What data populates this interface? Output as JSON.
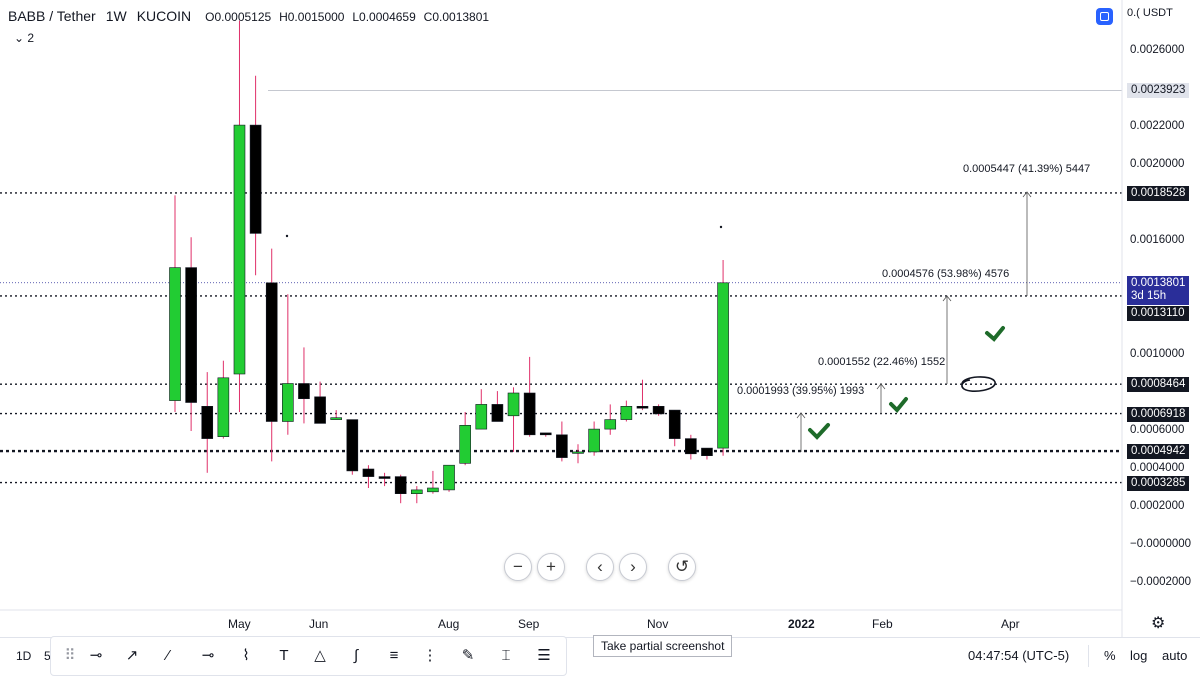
{
  "header": {
    "symbol": "BABB / Tether",
    "interval": "1W",
    "exchange": "KUCOIN",
    "open": "O0.0005125",
    "high": "H0.0015000",
    "low": "L0.0004659",
    "close": "C0.0013801",
    "indicator_count": "2"
  },
  "currency_label": "0.( USDT",
  "price_labels": {
    "hline_top": "0.0023923",
    "level_1": "0.0018528",
    "current_price": "0.0013801",
    "countdown": "3d 15h",
    "level_2": "0.0013110",
    "level_3": "0.0008464",
    "level_4": "0.0006918",
    "level_5": "0.0004942",
    "level_6": "0.0003285"
  },
  "annotations": [
    {
      "text": "0.0005447 (41.39%) 5447"
    },
    {
      "text": "0.0004576 (53.98%) 4576"
    },
    {
      "text": "0.0001552 (22.46%) 1552"
    },
    {
      "text": "0.0001993 (39.95%) 1993"
    }
  ],
  "nav_buttons": {
    "zoom_out": "−",
    "zoom_in": "+",
    "scroll_left": "‹",
    "scroll_right": "›",
    "reset": "↺"
  },
  "bottom": {
    "tf_1d": "1D",
    "tf_5": "5",
    "tooltip": "Take partial screenshot",
    "clock": "04:47:54 (UTC-5)",
    "percent": "%",
    "log": "log",
    "auto": "auto"
  },
  "colors": {
    "up": "#22cc33",
    "down": "#000000",
    "wick": "#e0306a",
    "background": "#ffffff",
    "checkmark": "#1e6b2a"
  },
  "chart_data": {
    "type": "candlestick",
    "title": "BABB / Tether 1W KUCOIN",
    "y_ticks": [
      "0.0026000",
      "0.0022000",
      "0.0020000",
      "0.0016000",
      "0.0010000",
      "0.0006000",
      "0.0004000",
      "0.0002000",
      "−0.0000000",
      "−0.0002000"
    ],
    "y_tick_values": [
      0.0026,
      0.0022,
      0.002,
      0.0016,
      0.001,
      0.0006,
      0.0004,
      0.0002,
      0.0,
      -0.0002
    ],
    "x_ticks": [
      "May",
      "Jun",
      "Aug",
      "Sep",
      "Nov",
      "2022",
      "Feb",
      "Apr"
    ],
    "ylim": [
      -0.00024,
      0.00278
    ],
    "candles": [
      {
        "o": 0.00076,
        "h": 0.00184,
        "l": 0.0007,
        "c": 0.00146
      },
      {
        "o": 0.00146,
        "h": 0.00162,
        "l": 0.0006,
        "c": 0.00075
      },
      {
        "o": 0.00073,
        "h": 0.00091,
        "l": 0.00038,
        "c": 0.00056
      },
      {
        "o": 0.00057,
        "h": 0.00097,
        "l": 0.00056,
        "c": 0.00088
      },
      {
        "o": 0.0009,
        "h": 0.00276,
        "l": 0.0007,
        "c": 0.00221
      },
      {
        "o": 0.00221,
        "h": 0.00247,
        "l": 0.00142,
        "c": 0.00164
      },
      {
        "o": 0.00138,
        "h": 0.00156,
        "l": 0.00044,
        "c": 0.00065
      },
      {
        "o": 0.00065,
        "h": 0.00132,
        "l": 0.00058,
        "c": 0.00085
      },
      {
        "o": 0.00085,
        "h": 0.00104,
        "l": 0.00064,
        "c": 0.00077
      },
      {
        "o": 0.00078,
        "h": 0.00086,
        "l": 0.00064,
        "c": 0.00064
      },
      {
        "o": 0.00066,
        "h": 0.00071,
        "l": 0.00066,
        "c": 0.00067
      },
      {
        "o": 0.00066,
        "h": 0.00066,
        "l": 0.00037,
        "c": 0.00039
      },
      {
        "o": 0.0004,
        "h": 0.00042,
        "l": 0.0003,
        "c": 0.00036
      },
      {
        "o": 0.00036,
        "h": 0.00038,
        "l": 0.00031,
        "c": 0.00035
      },
      {
        "o": 0.00036,
        "h": 0.00037,
        "l": 0.00022,
        "c": 0.00027
      },
      {
        "o": 0.00027,
        "h": 0.00031,
        "l": 0.00022,
        "c": 0.00029
      },
      {
        "o": 0.00028,
        "h": 0.00039,
        "l": 0.00027,
        "c": 0.0003
      },
      {
        "o": 0.00029,
        "h": 0.00042,
        "l": 0.00028,
        "c": 0.00042
      },
      {
        "o": 0.00043,
        "h": 0.0007,
        "l": 0.00042,
        "c": 0.00063
      },
      {
        "o": 0.00061,
        "h": 0.00082,
        "l": 0.00061,
        "c": 0.00074
      },
      {
        "o": 0.00074,
        "h": 0.00081,
        "l": 0.00065,
        "c": 0.00065
      },
      {
        "o": 0.00068,
        "h": 0.00083,
        "l": 0.00049,
        "c": 0.0008
      },
      {
        "o": 0.0008,
        "h": 0.00099,
        "l": 0.00057,
        "c": 0.00058
      },
      {
        "o": 0.00059,
        "h": 0.00059,
        "l": 0.00057,
        "c": 0.00058
      },
      {
        "o": 0.00058,
        "h": 0.00065,
        "l": 0.00044,
        "c": 0.00046
      },
      {
        "o": 0.00049,
        "h": 0.00053,
        "l": 0.00043,
        "c": 0.00049
      },
      {
        "o": 0.00049,
        "h": 0.00065,
        "l": 0.00047,
        "c": 0.00061
      },
      {
        "o": 0.00061,
        "h": 0.00074,
        "l": 0.00058,
        "c": 0.00066
      },
      {
        "o": 0.00066,
        "h": 0.00076,
        "l": 0.00065,
        "c": 0.00073
      },
      {
        "o": 0.00073,
        "h": 0.00087,
        "l": 0.00071,
        "c": 0.00072
      },
      {
        "o": 0.00073,
        "h": 0.00074,
        "l": 0.00068,
        "c": 0.00069
      },
      {
        "o": 0.00071,
        "h": 0.00071,
        "l": 0.00052,
        "c": 0.00056
      },
      {
        "o": 0.00056,
        "h": 0.00058,
        "l": 0.00045,
        "c": 0.00048
      },
      {
        "o": 0.00051,
        "h": 0.00051,
        "l": 0.00045,
        "c": 0.00047
      },
      {
        "o": 0.00051,
        "h": 0.0015,
        "l": 0.00047,
        "c": 0.00138
      }
    ]
  }
}
